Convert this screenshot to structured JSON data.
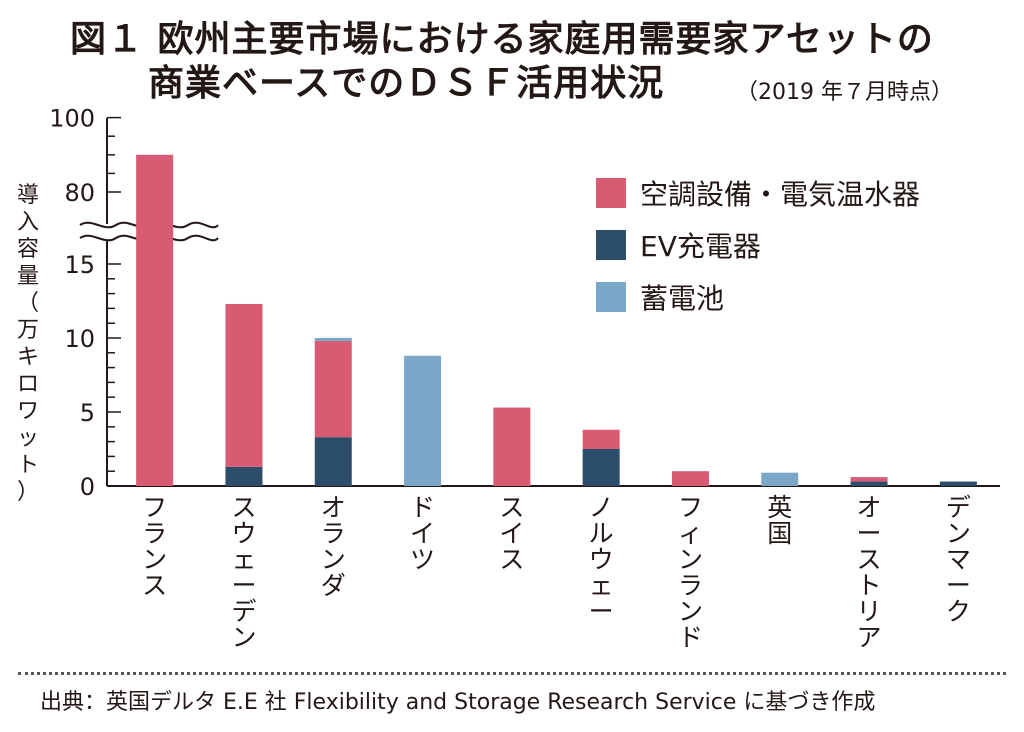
{
  "header": {
    "title_line1": "図１ 欧州主要市場における家庭用需要家アセットの",
    "title_line2": "商業ベースでのＤＳＦ活用状況",
    "as_of": "（2019 年７月時点）"
  },
  "footer": {
    "source": "出典：英国デルタ E.E 社 Flexibility and Storage Research Service に基づき作成"
  },
  "chart_data": {
    "type": "bar",
    "stacked": true,
    "ylabel": "導入容量（万キロワット）",
    "yticks": [
      "0",
      "5",
      "10",
      "15",
      "80",
      "100"
    ],
    "axis_break": "between 15 and 80",
    "categories": [
      "フランス",
      "スウェーデン",
      "オランダ",
      "ドイツ",
      "スイス",
      "ノルウェー",
      "フィンランド",
      "英国",
      "オーストリア",
      "デンマーク"
    ],
    "series": [
      {
        "name": "空調設備・電気温水器",
        "color": "#d85a73",
        "values": [
          90,
          11.0,
          6.5,
          0,
          5.3,
          1.3,
          1.0,
          0,
          0.3,
          0
        ]
      },
      {
        "name": "EV充電器",
        "color": "#2d4e6b",
        "values": [
          0,
          1.3,
          3.3,
          0,
          0,
          2.5,
          0,
          0,
          0.3,
          0.3
        ]
      },
      {
        "name": "蓄電池",
        "color": "#7aa7c7",
        "values": [
          0,
          0,
          0.2,
          8.8,
          0,
          0,
          0,
          0.9,
          0,
          0
        ]
      }
    ],
    "legend_position": "top-right",
    "grid": false
  }
}
